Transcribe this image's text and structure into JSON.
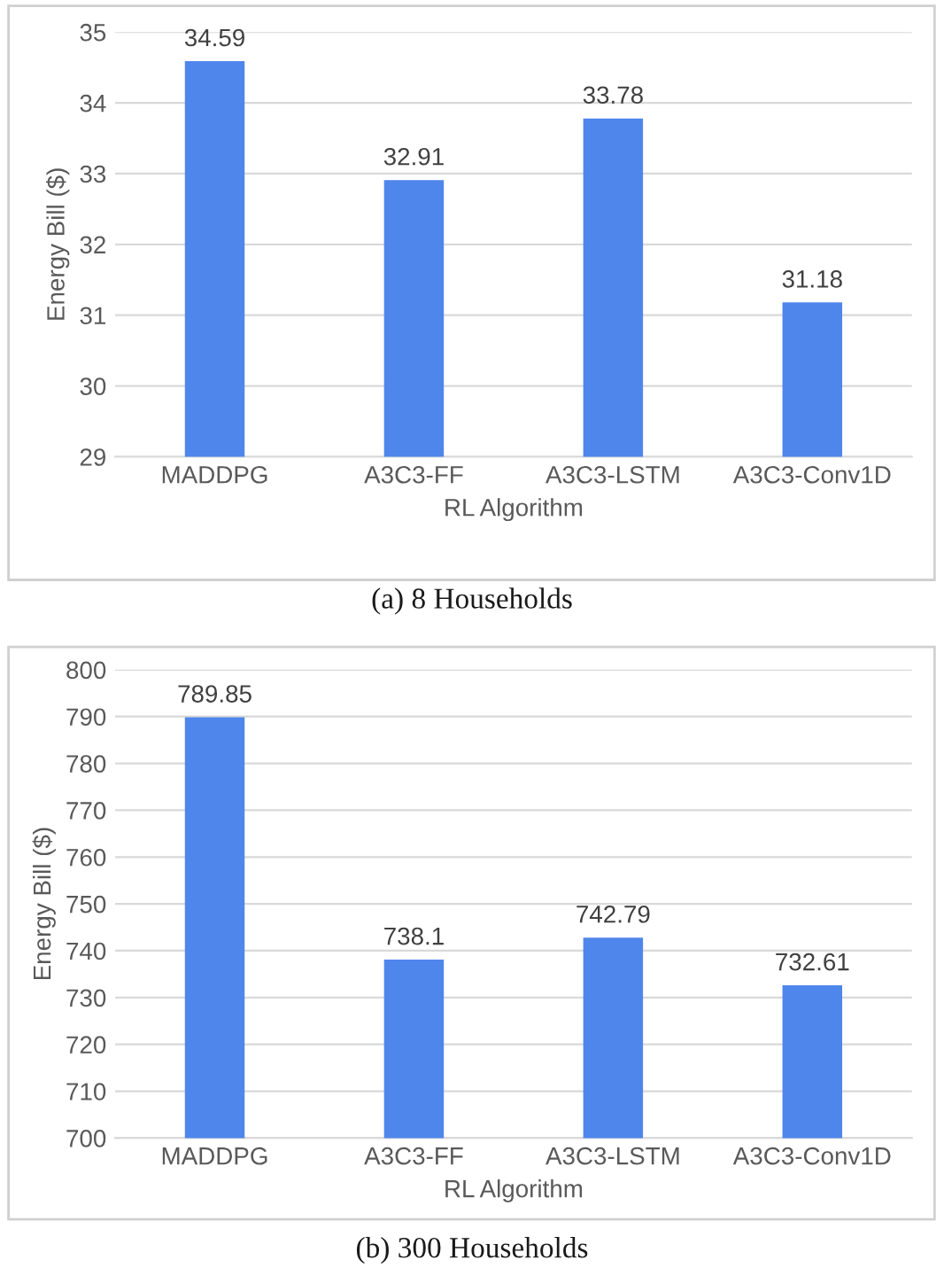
{
  "chart_data": [
    {
      "type": "bar",
      "title": "(a) 8 Households",
      "xlabel": "RL Algorithm",
      "ylabel": "Energy Bill ($)",
      "categories": [
        "MADDPG",
        "A3C3-FF",
        "A3C3-LSTM",
        "A3C3-Conv1D"
      ],
      "values": [
        34.59,
        32.91,
        33.78,
        31.18
      ],
      "color": "#4f86ec",
      "data_labels": true,
      "ylim": [
        29,
        35
      ],
      "yticks": [
        29,
        30,
        31,
        32,
        33,
        34,
        35
      ],
      "grid": "y"
    },
    {
      "type": "bar",
      "title": "(b) 300 Households",
      "xlabel": "RL Algorithm",
      "ylabel": "Energy Bill ($)",
      "categories": [
        "MADDPG",
        "A3C3-FF",
        "A3C3-LSTM",
        "A3C3-Conv1D"
      ],
      "values": [
        789.85,
        738.1,
        742.79,
        732.61
      ],
      "color": "#4f86ec",
      "data_labels": true,
      "ylim": [
        700,
        800
      ],
      "yticks": [
        700,
        710,
        720,
        730,
        740,
        750,
        760,
        770,
        780,
        790,
        800
      ],
      "grid": "y"
    }
  ]
}
